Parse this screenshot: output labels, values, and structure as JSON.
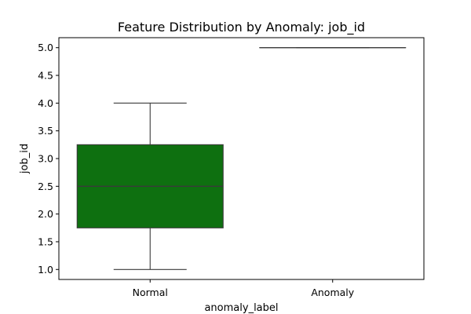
{
  "chart_data": {
    "type": "box",
    "title": "Feature Distribution by Anomaly: job_id",
    "xlabel": "anomaly_label",
    "ylabel": "job_id",
    "categories": [
      "Normal",
      "Anomaly"
    ],
    "ylim": [
      0.82,
      5.18
    ],
    "yticks": [
      "1.0",
      "1.5",
      "2.0",
      "2.5",
      "3.0",
      "3.5",
      "4.0",
      "4.5",
      "5.0"
    ],
    "boxes": [
      {
        "category": "Normal",
        "whisker_low": 1.0,
        "q1": 1.75,
        "median": 2.5,
        "q3": 3.25,
        "whisker_high": 4.0,
        "color": "#0e7010"
      },
      {
        "category": "Anomaly",
        "whisker_low": 5.0,
        "q1": 5.0,
        "median": 5.0,
        "q3": 5.0,
        "whisker_high": 5.0,
        "color": "#0e7010"
      }
    ],
    "grid": false,
    "legend": "none"
  }
}
